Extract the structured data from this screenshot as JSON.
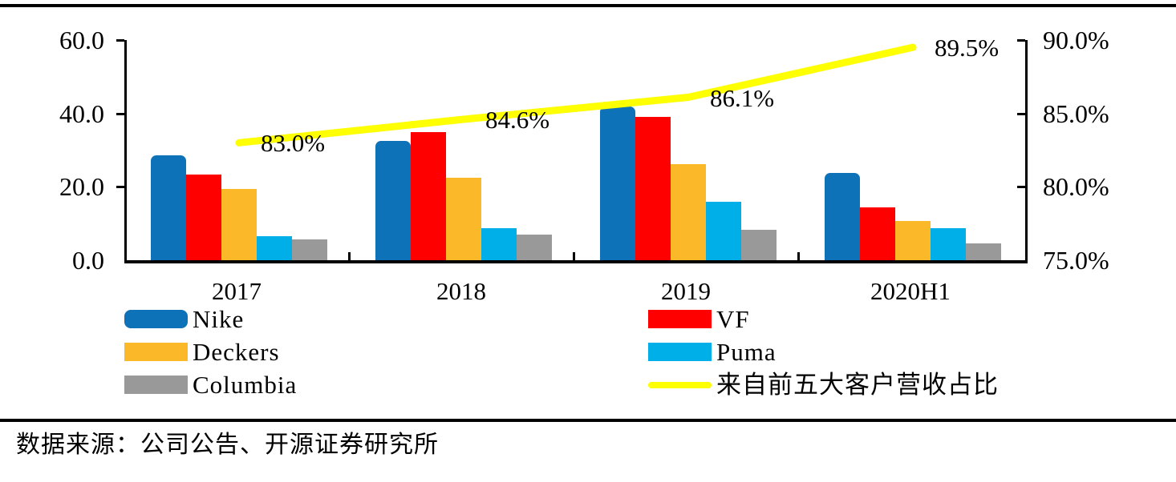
{
  "chart_data": {
    "type": "bar+line",
    "title": "",
    "categories": [
      "2017",
      "2018",
      "2019",
      "2020H1"
    ],
    "series": [
      {
        "name": "Nike",
        "color": "#0E72B8",
        "values": [
          28.5,
          32.5,
          42.0,
          23.7
        ]
      },
      {
        "name": "VF",
        "color": "#FE0000",
        "values": [
          23.3,
          35.0,
          39.0,
          14.5
        ]
      },
      {
        "name": "Deckers",
        "color": "#FBB829",
        "values": [
          19.5,
          22.5,
          26.2,
          10.8
        ]
      },
      {
        "name": "Puma",
        "color": "#00AEE8",
        "values": [
          6.5,
          8.8,
          15.9,
          8.8
        ]
      },
      {
        "name": "Columbia",
        "color": "#999999",
        "values": [
          5.7,
          7.0,
          8.2,
          4.5
        ]
      }
    ],
    "line_series": {
      "name": "来自前五大客户营收占比",
      "color": "#FEFF01",
      "values": [
        83.0,
        84.6,
        86.1,
        89.5
      ],
      "labels": [
        "83.0%",
        "84.6%",
        "86.1%",
        "89.5%"
      ]
    },
    "left_axis": {
      "min": 0,
      "max": 60,
      "ticks": [
        0,
        20,
        40,
        60
      ],
      "tick_labels": [
        "0.0",
        "20.0",
        "40.0",
        "60.0"
      ]
    },
    "right_axis": {
      "min": 75,
      "max": 90,
      "ticks": [
        75,
        80,
        85,
        90
      ],
      "tick_labels": [
        "75.0%",
        "80.0%",
        "85.0%",
        "90.0%"
      ]
    },
    "grid": false,
    "legend_position": "bottom"
  },
  "legend": {
    "columns": [
      [
        {
          "label": "Nike",
          "color": "#0E72B8",
          "type": "box-rounded"
        },
        {
          "label": "Deckers",
          "color": "#FBB829",
          "type": "box"
        },
        {
          "label": "Columbia",
          "color": "#999999",
          "type": "box"
        }
      ],
      [
        {
          "label": "VF",
          "color": "#FE0000",
          "type": "box"
        },
        {
          "label": "Puma",
          "color": "#00AEE8",
          "type": "box"
        },
        {
          "label": "来自前五大客户营收占比",
          "color": "#FEFF01",
          "type": "line"
        }
      ]
    ]
  },
  "source": {
    "text": "数据来源：公司公告、开源证券研究所"
  },
  "colors": {
    "axis": "#000000",
    "background": "#ffffff"
  }
}
